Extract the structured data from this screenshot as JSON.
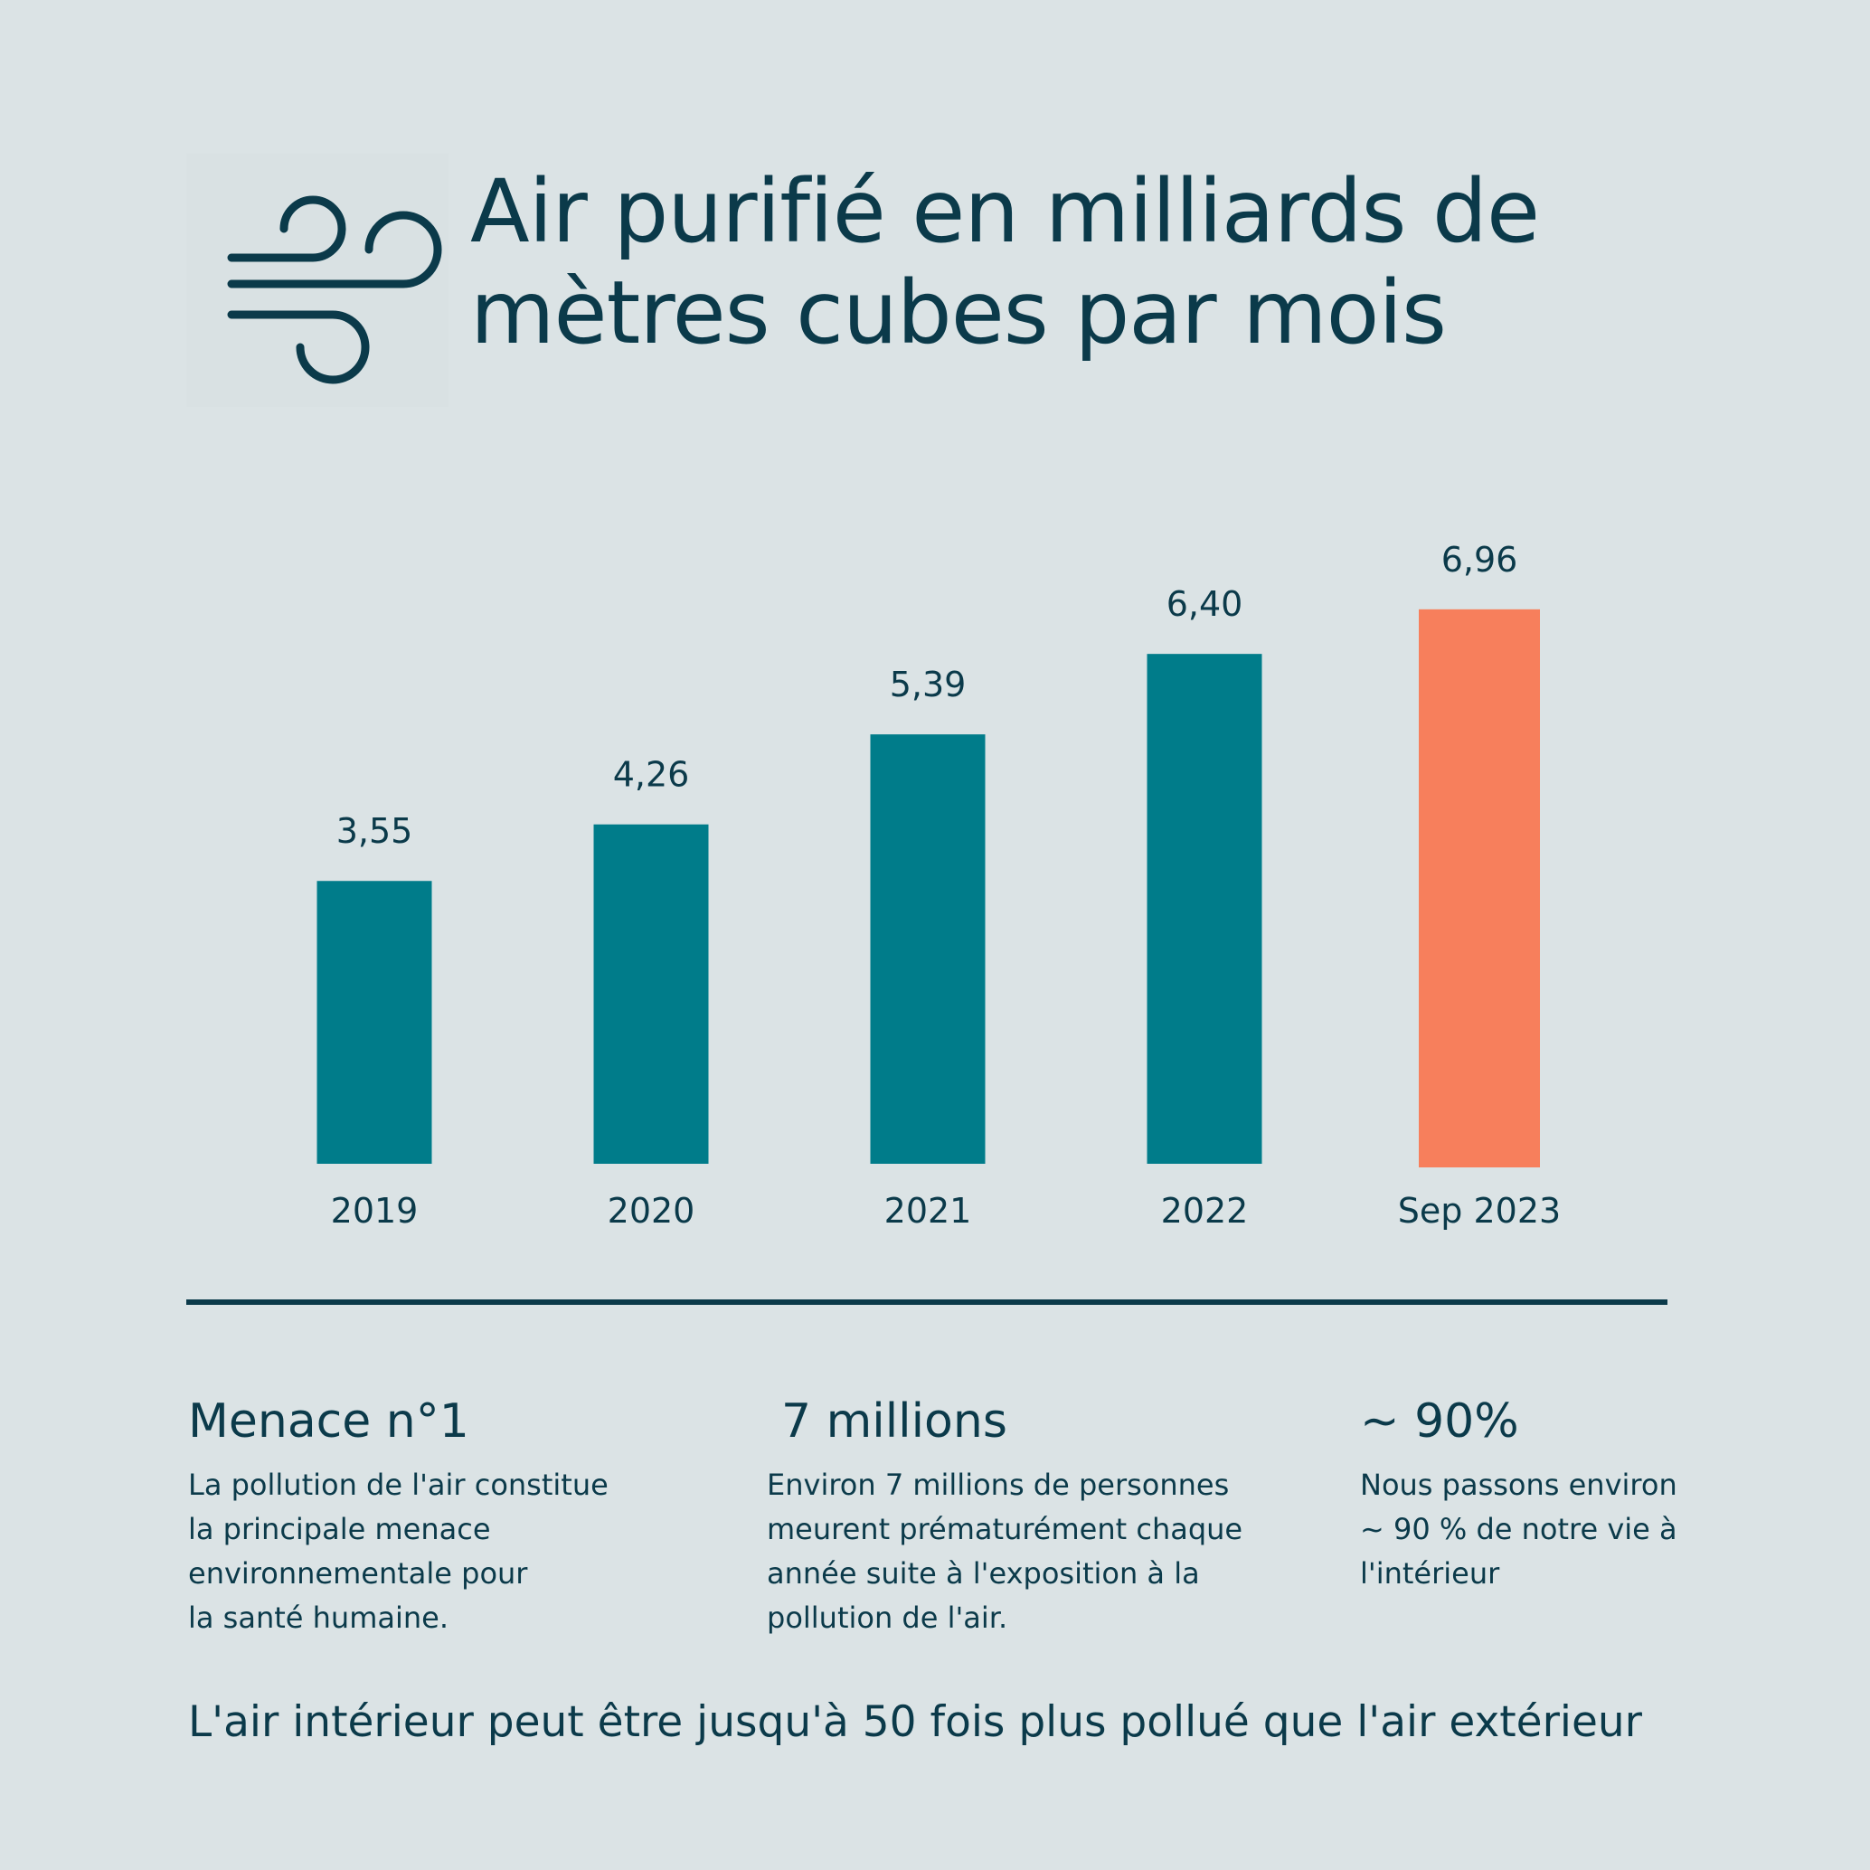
{
  "header": {
    "icon": "wind-icon",
    "title_lines": [
      "Air purifié en milliards de",
      "mètres cubes par mois"
    ]
  },
  "chart_data": {
    "type": "bar",
    "title": "Air purifié en milliards de mètres cubes par mois",
    "categories": [
      "2019",
      "2020",
      "2021",
      "2022",
      "Sep 2023"
    ],
    "values": [
      3.55,
      4.26,
      5.39,
      6.4,
      6.96
    ],
    "value_labels": [
      "3,55",
      "4,26",
      "5,39",
      "6,40",
      "6,96"
    ],
    "ylim": [
      0,
      8
    ],
    "grid": false,
    "colors": {
      "default": "#007c8a",
      "highlight": "#f77f5c",
      "text": "#0b3a4a",
      "background": "#dbe3e5"
    },
    "highlight_index": 4
  },
  "stats": [
    {
      "value": "Menace n°1",
      "text_lines": [
        "La pollution de l'air constitue",
        "la principale menace",
        "environnementale pour",
        "la santé humaine."
      ]
    },
    {
      "value": "7 millions",
      "text_lines": [
        "Environ 7 millions de personnes",
        "meurent prématurément chaque",
        "année suite à l'exposition à la",
        "pollution de l'air."
      ]
    },
    {
      "value": "~ 90%",
      "text_lines": [
        "Nous passons environ",
        "~ 90 % de notre vie à",
        "l'intérieur"
      ]
    }
  ],
  "footer": {
    "note": "L'air intérieur peut être jusqu'à 50 fois plus pollué que l'air extérieur"
  }
}
